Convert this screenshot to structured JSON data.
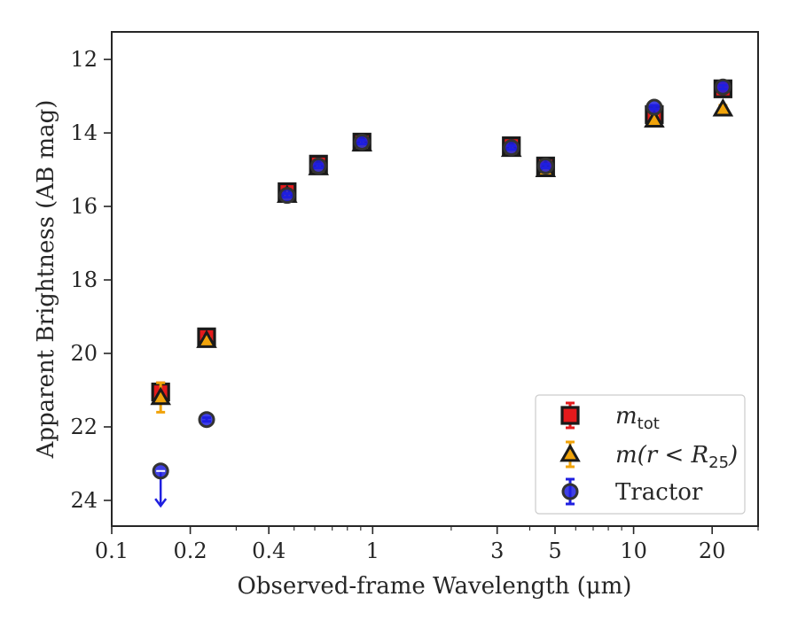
{
  "chart_data": {
    "type": "scatter",
    "xlabel": "Observed-frame Wavelength (μm)",
    "ylabel": "Apparent Brightness (AB mag)",
    "x_scale": "log",
    "xlim": [
      0.1,
      30
    ],
    "ylim": [
      24.7,
      11.25
    ],
    "y_inverted": true,
    "x_ticks": [
      0.1,
      0.2,
      0.4,
      1,
      3,
      5,
      10,
      20
    ],
    "x_tick_labels": [
      "0.1",
      "0.2",
      "0.4",
      "1",
      "3",
      "5",
      "10",
      "20"
    ],
    "y_ticks": [
      12,
      14,
      16,
      18,
      20,
      22,
      24
    ],
    "y_tick_labels": [
      "12",
      "14",
      "16",
      "18",
      "20",
      "22",
      "24"
    ],
    "grid": false,
    "legend_position": "lower-right",
    "series": [
      {
        "name": "m_tot",
        "legend_main": "m",
        "legend_sub": "tot",
        "marker": "square",
        "color": "#e41a1c",
        "edge": "#1a1a1a",
        "points": [
          {
            "x": 0.154,
            "y": 21.05,
            "err": 0.25
          },
          {
            "x": 0.231,
            "y": 19.55,
            "err": 0.08
          },
          {
            "x": 0.47,
            "y": 15.6,
            "err": 0.08
          },
          {
            "x": 0.62,
            "y": 14.85,
            "err": 0.08
          },
          {
            "x": 0.91,
            "y": 14.25,
            "err": 0.08
          },
          {
            "x": 3.4,
            "y": 14.35,
            "err": 0.08
          },
          {
            "x": 4.6,
            "y": 14.9,
            "err": 0.08
          },
          {
            "x": 12.0,
            "y": 13.5,
            "err": 0.1
          },
          {
            "x": 22.0,
            "y": 12.8,
            "err": 0.1
          }
        ]
      },
      {
        "name": "m(r < R25)",
        "legend_main": "m(r < R",
        "legend_sub": "25",
        "legend_tail": ")",
        "marker": "triangle",
        "color": "#f0a30a",
        "edge": "#1a1a1a",
        "points": [
          {
            "x": 0.154,
            "y": 21.2,
            "err": 0.4
          },
          {
            "x": 0.231,
            "y": 19.65,
            "err": 0.08
          },
          {
            "x": 0.47,
            "y": 15.7,
            "err": 0.08
          },
          {
            "x": 0.62,
            "y": 14.95,
            "err": 0.08
          },
          {
            "x": 0.91,
            "y": 14.3,
            "err": 0.08
          },
          {
            "x": 3.4,
            "y": 14.45,
            "err": 0.08
          },
          {
            "x": 4.6,
            "y": 15.0,
            "err": 0.08
          },
          {
            "x": 12.0,
            "y": 13.65,
            "err": 0.1
          },
          {
            "x": 22.0,
            "y": 13.35,
            "err": 0.1
          }
        ]
      },
      {
        "name": "Tractor",
        "marker": "circle",
        "color": "#1f1fe0",
        "edge": "#333333",
        "points": [
          {
            "x": 0.154,
            "y": 23.2,
            "err": 0.05,
            "upper_limit": true
          },
          {
            "x": 0.231,
            "y": 21.8,
            "err": 0.05
          },
          {
            "x": 0.47,
            "y": 15.7,
            "err": 0.05
          },
          {
            "x": 0.62,
            "y": 14.9,
            "err": 0.05
          },
          {
            "x": 0.91,
            "y": 14.25,
            "err": 0.05
          },
          {
            "x": 3.4,
            "y": 14.4,
            "err": 0.05
          },
          {
            "x": 4.6,
            "y": 14.9,
            "err": 0.05
          },
          {
            "x": 12.0,
            "y": 13.3,
            "err": 0.05
          },
          {
            "x": 22.0,
            "y": 12.75,
            "err": 0.05
          }
        ]
      }
    ]
  }
}
